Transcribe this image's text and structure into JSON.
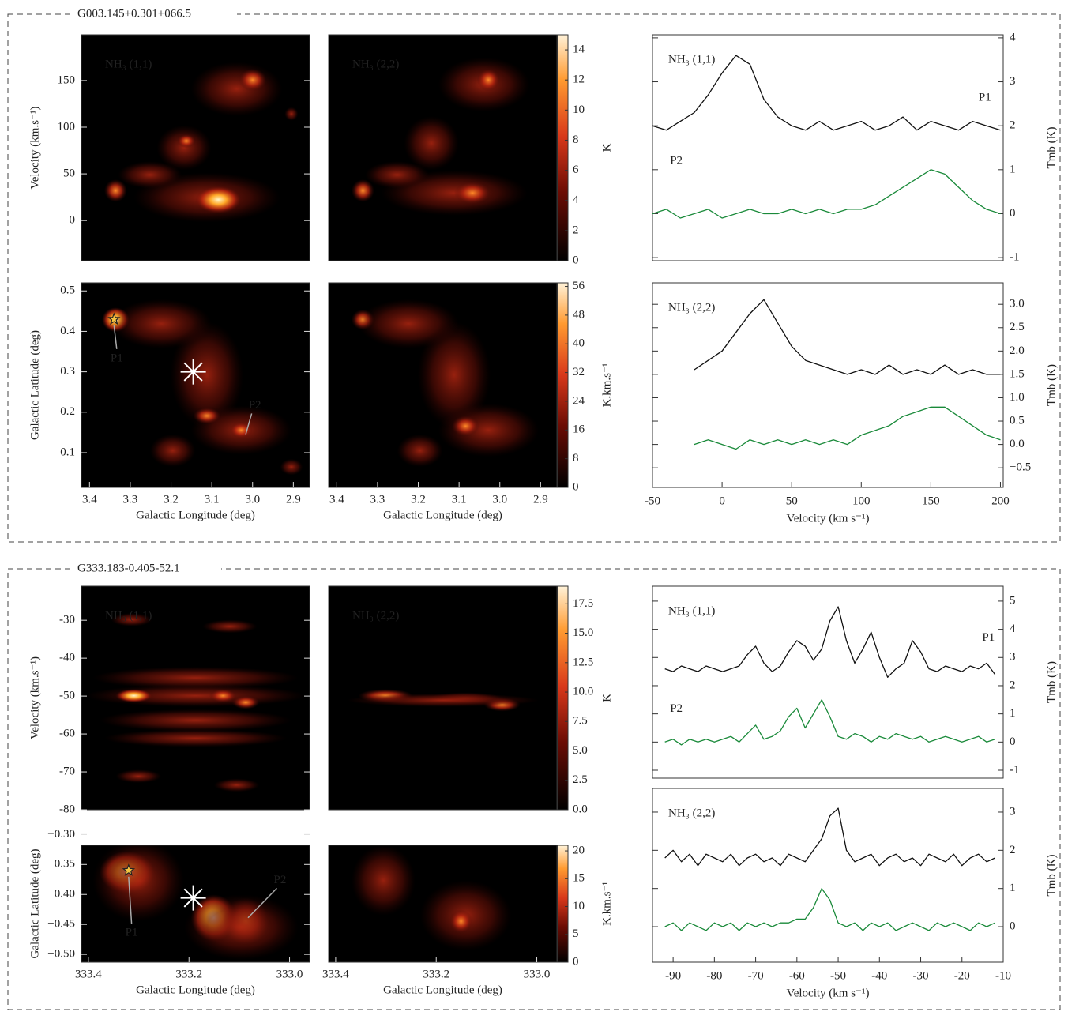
{
  "source_labels": [
    "G003.145+0.301+066.5",
    "G333.183-0.405-52.1"
  ],
  "chart_data": [
    {
      "type": "heatmap",
      "annotation": "NH₃ (1,1)",
      "ylabel": "Velocity (km.s⁻¹)",
      "xlim": [
        3.42,
        2.86
      ],
      "ylim": [
        -43,
        199
      ],
      "yticks": [
        0,
        50,
        100,
        150
      ]
    },
    {
      "type": "heatmap",
      "annotation": "NH₃ (2,2)",
      "xlim": [
        3.42,
        2.86
      ],
      "ylim": [
        -43,
        199
      ],
      "colorbar": {
        "label": "K",
        "zlim": [
          0,
          15
        ],
        "zticks": [
          0,
          2,
          4,
          6,
          8,
          10,
          12,
          14
        ]
      }
    },
    {
      "type": "heatmap",
      "ylabel": "Galactic Latitude (deg)",
      "xlabel": "Galactic Longitude (deg)",
      "xlim": [
        3.42,
        2.86
      ],
      "ylim": [
        0.014,
        0.52
      ],
      "xticks": [
        3.4,
        3.3,
        3.2,
        3.1,
        {
          "value": 3.0,
          "label": "3.0"
        },
        2.9
      ],
      "yticks": [
        0.1,
        0.2,
        0.3,
        0.4,
        0.5
      ],
      "annotations": [
        "P1",
        "P2"
      ]
    },
    {
      "type": "heatmap",
      "xlabel": "Galactic Longitude (deg)",
      "xlim": [
        3.42,
        2.86
      ],
      "ylim": [
        0.014,
        0.52
      ],
      "xticks": [
        3.4,
        3.3,
        3.2,
        3.1,
        {
          "value": 3.0,
          "label": "3.0"
        },
        2.9
      ],
      "colorbar": {
        "label": "K.km.s⁻¹",
        "zlim": [
          0,
          57
        ],
        "zticks": [
          0,
          8,
          16,
          24,
          32,
          40,
          48,
          56
        ]
      }
    },
    {
      "type": "line",
      "annotation": "NH₃ (1,1)",
      "ylabel": "Tmb (K)",
      "xlim": [
        -50,
        202
      ],
      "ylim": [
        -1.07,
        4.07
      ],
      "yticks": [
        -1,
        0,
        1,
        2,
        3,
        4
      ],
      "x": [
        -50,
        -40,
        -30,
        -20,
        -10,
        0,
        10,
        20,
        30,
        40,
        50,
        60,
        70,
        80,
        90,
        100,
        110,
        120,
        130,
        140,
        150,
        160,
        170,
        180,
        190,
        200
      ],
      "series": [
        {
          "name": "P1",
          "color": "#111111",
          "values": [
            2.0,
            1.9,
            2.1,
            2.3,
            2.7,
            3.2,
            3.6,
            3.4,
            2.6,
            2.2,
            2.0,
            1.9,
            2.1,
            1.9,
            2.0,
            2.1,
            1.9,
            2.0,
            2.2,
            1.9,
            2.1,
            2.0,
            1.9,
            2.1,
            2.0,
            1.9
          ]
        },
        {
          "name": "P2",
          "color": "#1a8a3a",
          "values": [
            0.0,
            0.1,
            -0.1,
            0.0,
            0.1,
            -0.1,
            0.0,
            0.1,
            0.0,
            0.0,
            0.1,
            0.0,
            0.1,
            0.0,
            0.1,
            0.1,
            0.2,
            0.4,
            0.6,
            0.8,
            1.0,
            0.9,
            0.6,
            0.3,
            0.1,
            0.0
          ]
        }
      ]
    },
    {
      "type": "line",
      "annotation": "NH₃ (2,2)",
      "ylabel": "Tmb (K)",
      "xlabel": "Velocity (km s⁻¹)",
      "xlim": [
        -50,
        202
      ],
      "ylim": [
        -0.92,
        3.46
      ],
      "xticks": [
        -50,
        0,
        50,
        100,
        150,
        200
      ],
      "yticks": [
        {
          "value": -0.5,
          "label": "−0.5"
        },
        {
          "value": 0,
          "label": "0.0"
        },
        0.5,
        {
          "value": 1,
          "label": "1.0"
        },
        1.5,
        {
          "value": 2,
          "label": "2.0"
        },
        2.5,
        {
          "value": 3,
          "label": "3.0"
        }
      ],
      "x": [
        -20,
        -10,
        0,
        10,
        20,
        30,
        40,
        50,
        60,
        70,
        80,
        90,
        100,
        110,
        120,
        130,
        140,
        150,
        160,
        170,
        180,
        190,
        200
      ],
      "series": [
        {
          "color": "#111111",
          "values": [
            1.6,
            1.8,
            2.0,
            2.4,
            2.8,
            3.1,
            2.6,
            2.1,
            1.8,
            1.7,
            1.6,
            1.5,
            1.6,
            1.5,
            1.7,
            1.5,
            1.6,
            1.5,
            1.7,
            1.5,
            1.6,
            1.5,
            1.5
          ]
        },
        {
          "color": "#1a8a3a",
          "values": [
            0.0,
            0.1,
            0.0,
            -0.1,
            0.1,
            0.0,
            0.1,
            0.0,
            0.1,
            0.0,
            0.1,
            0.0,
            0.2,
            0.3,
            0.4,
            0.6,
            0.7,
            0.8,
            0.8,
            0.6,
            0.4,
            0.2,
            0.1
          ]
        }
      ]
    },
    {
      "type": "heatmap",
      "annotation": "NH₃ (1,1)",
      "ylabel": "Velocity (km.s⁻¹)",
      "xlim": [
        333.414,
        332.96
      ],
      "ylim": [
        -80,
        -21
      ],
      "yticks": [
        -30,
        -40,
        -50,
        -60,
        -70,
        -80
      ]
    },
    {
      "type": "heatmap",
      "annotation": "NH₃ (2,2)",
      "xlim": [
        333.414,
        332.96
      ],
      "ylim": [
        -80,
        -21
      ],
      "colorbar": {
        "label": "K",
        "zlim": [
          0,
          19
        ],
        "zticks": [
          {
            "value": 0,
            "label": "0.0"
          },
          2.5,
          {
            "value": 5,
            "label": "5.0"
          },
          7.5,
          {
            "value": 10,
            "label": "10.0"
          },
          12.5,
          {
            "value": 15,
            "label": "15.0"
          },
          17.5
        ]
      }
    },
    {
      "type": "heatmap",
      "ylabel": "Galactic Latitude (deg)",
      "xlabel": "Galactic Longitude (deg)",
      "xlim": [
        333.414,
        332.96
      ],
      "ylim": [
        -0.513,
        -0.318
      ],
      "xticks": [
        333.4,
        333.2,
        {
          "value": 333.0,
          "label": "333.0"
        }
      ],
      "yticks": [
        {
          "value": -0.3,
          "label": "−0.30"
        },
        {
          "value": -0.35,
          "label": "−0.35"
        },
        {
          "value": -0.4,
          "label": "−0.40"
        },
        {
          "value": -0.45,
          "label": "−0.45"
        },
        {
          "value": -0.5,
          "label": "−0.50"
        }
      ],
      "annotations": [
        "P1",
        "P2"
      ]
    },
    {
      "type": "heatmap",
      "xlabel": "Galactic Longitude (deg)",
      "xlim": [
        333.414,
        332.96
      ],
      "ylim": [
        -0.513,
        -0.318
      ],
      "xticks": [
        333.4,
        333.2,
        {
          "value": 333.0,
          "label": "333.0"
        }
      ],
      "colorbar": {
        "label": "K.km.s⁻¹",
        "zlim": [
          0,
          21
        ],
        "zticks": [
          0,
          5,
          10,
          15,
          20
        ]
      }
    },
    {
      "type": "line",
      "annotation": "NH₃ (1,1)",
      "ylabel": "Tmb (K)",
      "xlim": [
        -95,
        -10
      ],
      "ylim": [
        -1.28,
        5.53
      ],
      "yticks": [
        -1,
        0,
        1,
        2,
        3,
        4,
        5
      ],
      "x": [
        -92,
        -90,
        -88,
        -86,
        -84,
        -82,
        -80,
        -78,
        -76,
        -74,
        -72,
        -70,
        -68,
        -66,
        -64,
        -62,
        -60,
        -58,
        -56,
        -54,
        -52,
        -50,
        -48,
        -46,
        -44,
        -42,
        -40,
        -38,
        -36,
        -34,
        -32,
        -30,
        -28,
        -26,
        -24,
        -22,
        -20,
        -18,
        -16,
        -14,
        -12
      ],
      "series": [
        {
          "name": "P1",
          "color": "#111111",
          "values": [
            2.6,
            2.5,
            2.7,
            2.6,
            2.5,
            2.7,
            2.6,
            2.5,
            2.6,
            2.7,
            3.1,
            3.4,
            2.8,
            2.5,
            2.7,
            3.2,
            3.6,
            3.4,
            2.9,
            3.3,
            4.3,
            4.8,
            3.6,
            2.8,
            3.3,
            3.9,
            3.0,
            2.3,
            2.6,
            2.8,
            3.6,
            3.2,
            2.6,
            2.5,
            2.7,
            2.6,
            2.5,
            2.7,
            2.6,
            2.8,
            2.4
          ]
        },
        {
          "name": "P2",
          "color": "#1a8a3a",
          "values": [
            0.0,
            0.1,
            -0.1,
            0.1,
            0.0,
            0.1,
            0.0,
            0.1,
            0.2,
            0.0,
            0.3,
            0.6,
            0.1,
            0.2,
            0.4,
            0.9,
            1.2,
            0.5,
            1.0,
            1.5,
            0.9,
            0.2,
            0.1,
            0.3,
            0.2,
            0.0,
            0.2,
            0.1,
            0.3,
            0.2,
            0.1,
            0.2,
            0.0,
            0.1,
            0.2,
            0.1,
            0.0,
            0.1,
            0.2,
            0.0,
            0.1
          ]
        }
      ]
    },
    {
      "type": "line",
      "annotation": "NH₃ (2,2)",
      "ylabel": "Tmb (K)",
      "xlabel": "Velocity (km s⁻¹)",
      "xlim": [
        -95,
        -10
      ],
      "ylim": [
        -0.93,
        3.62
      ],
      "xticks": [
        -90,
        -80,
        -70,
        -60,
        -50,
        -40,
        -30,
        -20,
        -10
      ],
      "yticks": [
        0,
        1,
        2,
        3
      ],
      "x": [
        -92,
        -90,
        -88,
        -86,
        -84,
        -82,
        -80,
        -78,
        -76,
        -74,
        -72,
        -70,
        -68,
        -66,
        -64,
        -62,
        -60,
        -58,
        -56,
        -54,
        -52,
        -50,
        -48,
        -46,
        -44,
        -42,
        -40,
        -38,
        -36,
        -34,
        -32,
        -30,
        -28,
        -26,
        -24,
        -22,
        -20,
        -18,
        -16,
        -14,
        -12
      ],
      "series": [
        {
          "color": "#111111",
          "values": [
            1.8,
            2.0,
            1.7,
            1.9,
            1.6,
            1.9,
            1.8,
            1.7,
            1.9,
            1.6,
            1.8,
            1.9,
            1.7,
            1.8,
            1.6,
            1.9,
            1.8,
            1.7,
            2.0,
            2.3,
            2.9,
            3.1,
            2.0,
            1.7,
            1.8,
            1.9,
            1.6,
            1.8,
            1.9,
            1.7,
            1.8,
            1.6,
            1.9,
            1.8,
            1.7,
            1.9,
            1.6,
            1.8,
            1.9,
            1.7,
            1.8
          ]
        },
        {
          "color": "#1a8a3a",
          "values": [
            0.0,
            0.1,
            -0.1,
            0.1,
            0.0,
            -0.1,
            0.1,
            0.0,
            0.1,
            -0.1,
            0.1,
            0.0,
            0.1,
            0.0,
            0.1,
            0.1,
            0.2,
            0.2,
            0.5,
            1.0,
            0.7,
            0.1,
            0.0,
            0.1,
            -0.1,
            0.1,
            0.0,
            0.1,
            -0.1,
            0.0,
            0.1,
            0.0,
            -0.1,
            0.1,
            0.0,
            0.1,
            0.0,
            -0.1,
            0.1,
            0.0,
            0.1
          ]
        }
      ]
    }
  ]
}
